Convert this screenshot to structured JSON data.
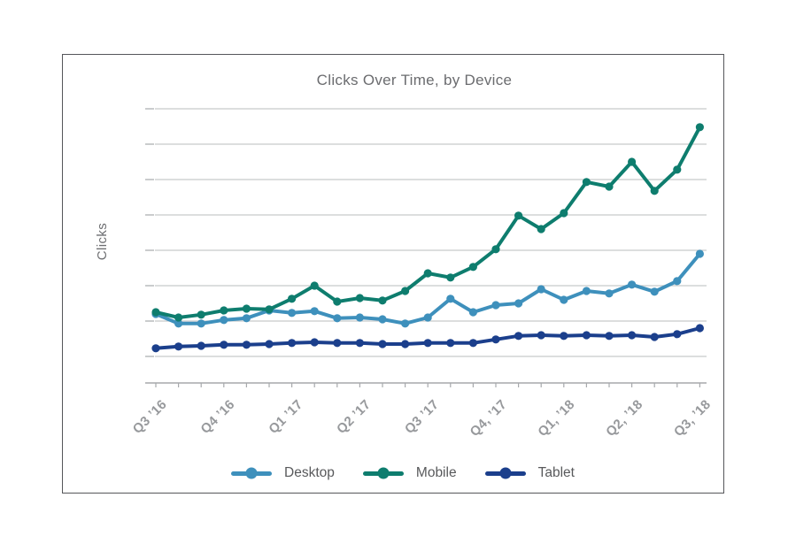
{
  "chart_data": {
    "type": "line",
    "title": "Clicks Over Time, by Device",
    "xlabel": "",
    "ylabel": "Clicks",
    "legend_position": "bottom-center",
    "grid": "horizontal-only",
    "x_axis": {
      "points_per_series": 25,
      "categories": [
        "Q3 ’16",
        "Q4 ’16",
        "Q1 ’17",
        "Q2 ’17",
        "Q3 ’17",
        "Q4, ’17",
        "Q1, ’18",
        "Q2, ’18",
        "Q3, ’18"
      ],
      "tick_indices": [
        0,
        3,
        6,
        9,
        12,
        15,
        18,
        21,
        24
      ]
    },
    "y_axis": {
      "min": 0,
      "max": 800,
      "gridline_values": [
        75,
        175,
        275,
        375,
        475,
        575,
        675,
        775
      ],
      "numeric_labels_shown": false
    },
    "series": [
      {
        "name": "Desktop",
        "color": "#3E90BC",
        "values": [
          195,
          168,
          168,
          178,
          183,
          205,
          198,
          203,
          183,
          185,
          180,
          168,
          185,
          238,
          200,
          220,
          225,
          265,
          235,
          260,
          253,
          278,
          258,
          288,
          365
        ]
      },
      {
        "name": "Mobile",
        "color": "#0E7D6E",
        "values": [
          200,
          185,
          193,
          205,
          210,
          208,
          238,
          275,
          230,
          240,
          233,
          260,
          310,
          298,
          328,
          378,
          473,
          435,
          480,
          568,
          555,
          625,
          543,
          603,
          723
        ]
      },
      {
        "name": "Tablet",
        "color": "#1B3F8C",
        "values": [
          98,
          103,
          105,
          108,
          108,
          110,
          113,
          115,
          113,
          113,
          110,
          110,
          113,
          113,
          113,
          123,
          133,
          135,
          133,
          135,
          133,
          135,
          130,
          138,
          155
        ]
      }
    ]
  },
  "styles": {
    "frame_border": "#55565A",
    "gridline": "#C8C9CB",
    "axis": "#A7A9AC",
    "title_color": "#6B6C6F",
    "tick_label_color": "#97999C",
    "legend_text": "#58595B",
    "background": "#FFFFFF"
  }
}
